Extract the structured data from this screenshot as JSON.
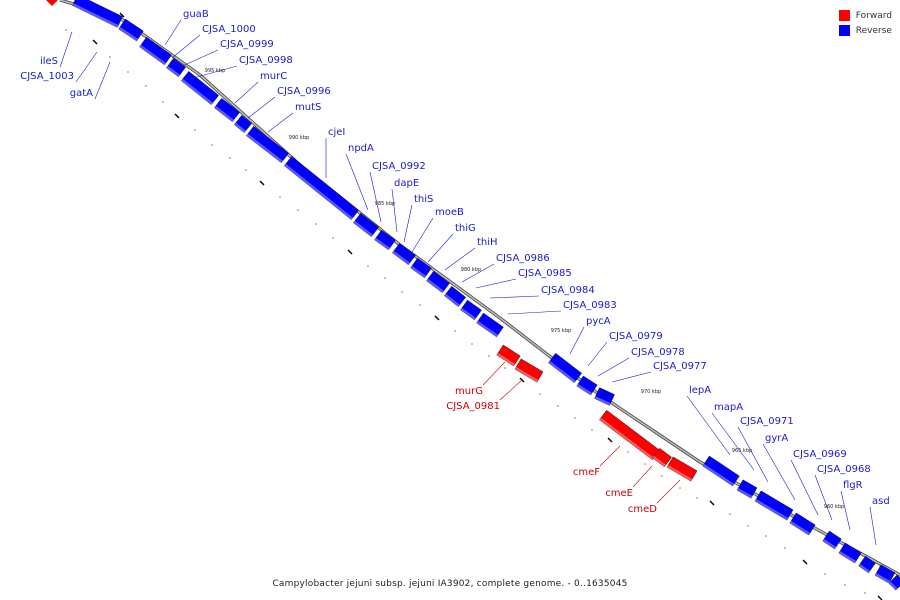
{
  "genome": {
    "caption": "Campylobacter jejuni subsp. jejuni IA3902, complete genome. - 0..1635045"
  },
  "legend": {
    "forward_label": "Forward",
    "reverse_label": "Reverse",
    "forward_color": "#ff0000",
    "reverse_color": "#0000ff"
  },
  "colors": {
    "backbone": "#8a8a8a",
    "forward_label_color": "#cc0000",
    "reverse_label_color": "#1a1acc",
    "tick_color": "#000000"
  },
  "scale": {
    "tick_labels": [
      "995 kbp",
      "990 kbp",
      "985 kbp",
      "980 kbp",
      "975 kbp",
      "970 kbp",
      "965 kbp",
      "960 kbp"
    ]
  },
  "reverse_genes": [
    "guaB",
    "CJSA_1000",
    "CJSA_0999",
    "CJSA_0998",
    "murC",
    "CJSA_0996",
    "mutS",
    "cjeI",
    "npdA",
    "CJSA_0992",
    "dapE",
    "thiS",
    "moeB",
    "thiG",
    "thiH",
    "CJSA_0986",
    "CJSA_0985",
    "CJSA_0984",
    "CJSA_0983",
    "pycA",
    "CJSA_0979",
    "CJSA_0978",
    "CJSA_0977",
    "lepA",
    "mapA",
    "CJSA_0971",
    "gyrA",
    "CJSA_0969",
    "CJSA_0968",
    "flgR",
    "asd",
    "ileS",
    "CJSA_1003",
    "gatA"
  ],
  "forward_genes": [
    "murG",
    "CJSA_0981",
    "cmeF",
    "cmeE",
    "cmeD"
  ]
}
